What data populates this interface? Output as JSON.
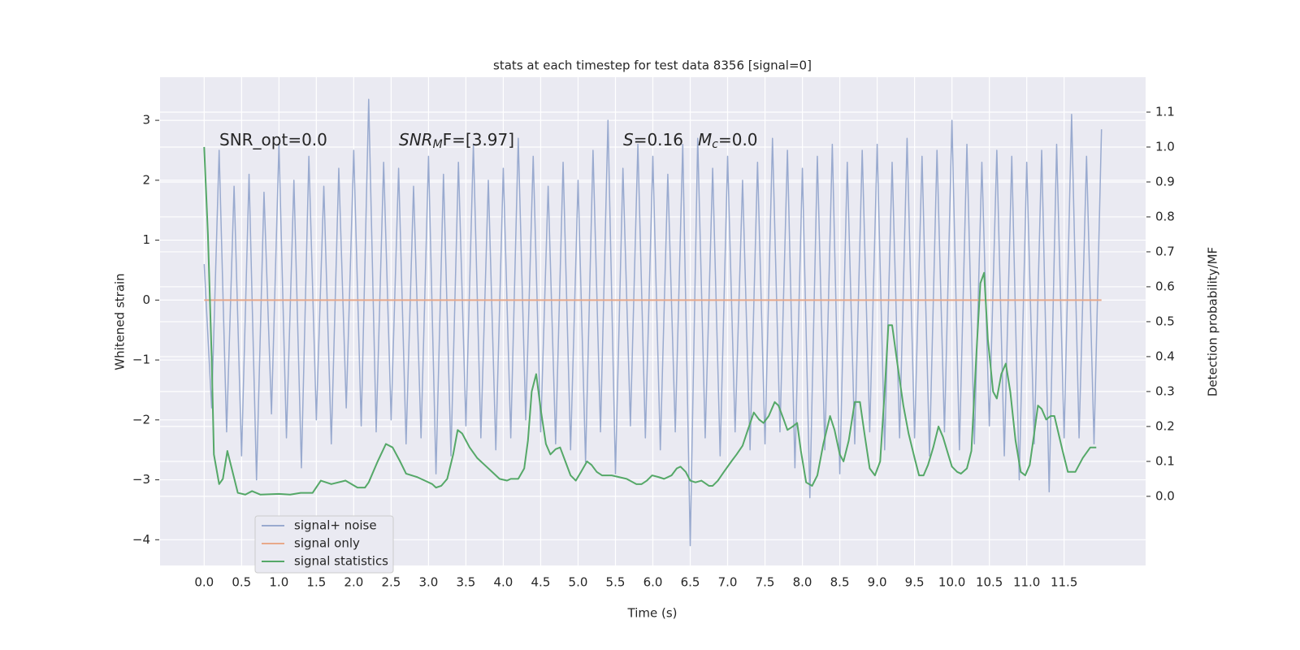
{
  "chart_data": {
    "type": "line",
    "title": "stats at each timestep for test data 8356 [signal=0]",
    "xlabel": "Time (s)",
    "ylabel": "Whitened strain",
    "y2label": "Detection probability/MF",
    "xlim": [
      -0.59,
      12.59
    ],
    "ylim": [
      -4.43,
      3.72
    ],
    "y2lim": [
      -0.198,
      1.2
    ],
    "xticks": [
      {
        "value": 0,
        "label": "0.0"
      },
      0.5,
      {
        "value": 1,
        "label": "1.0"
      },
      1.5,
      {
        "value": 2,
        "label": "2.0"
      },
      2.5,
      {
        "value": 3,
        "label": "3.0"
      },
      3.5,
      {
        "value": 4,
        "label": "4.0"
      },
      4.5,
      {
        "value": 5,
        "label": "5.0"
      },
      5.5,
      {
        "value": 6,
        "label": "6.0"
      },
      6.5,
      {
        "value": 7,
        "label": "7.0"
      },
      7.5,
      {
        "value": 8,
        "label": "8.0"
      },
      8.5,
      {
        "value": 9,
        "label": "9.0"
      },
      9.5,
      {
        "value": 10,
        "label": "10.0"
      },
      10.5,
      {
        "value": 11,
        "label": "11.0"
      },
      11.5
    ],
    "yticks": [
      {
        "value": -4,
        "label": "−4"
      },
      {
        "value": -3,
        "label": "−3"
      },
      {
        "value": -2,
        "label": "−2"
      },
      {
        "value": -1,
        "label": "−1"
      },
      0,
      1,
      2,
      3
    ],
    "y2ticks": [
      {
        "value": 0,
        "label": "0.0"
      },
      0.1,
      0.2,
      0.3,
      0.4,
      0.5,
      0.6,
      0.7,
      0.8,
      0.9,
      {
        "value": 1,
        "label": "1.0"
      },
      1.1
    ],
    "grid": true,
    "legend": "lower left",
    "annotations": [
      {
        "main": "SNR_opt=0.0"
      },
      {
        "main": "SNR",
        "sub": "M",
        "tail": "F=[3.97]"
      },
      {
        "main": "S",
        "tail": "=0.16"
      },
      {
        "main": "M",
        "sub": "c",
        "tail": "=0.0"
      }
    ],
    "series": [
      {
        "name": "signal+ noise",
        "color": "#99aacf",
        "x": [
          0,
          0.1,
          0.2,
          0.3,
          0.4,
          0.5,
          0.6,
          0.7,
          0.8,
          0.9,
          1,
          1.1,
          1.2,
          1.3,
          1.4,
          1.5,
          1.6,
          1.7,
          1.8,
          1.9,
          2,
          2.1,
          2.2,
          2.3,
          2.4,
          2.5,
          2.6,
          2.7,
          2.8,
          2.9,
          3,
          3.1,
          3.2,
          3.3,
          3.4,
          3.5,
          3.6,
          3.7,
          3.8,
          3.9,
          4,
          4.1,
          4.2,
          4.3,
          4.4,
          4.5,
          4.6,
          4.7,
          4.8,
          4.9,
          5,
          5.1,
          5.2,
          5.3,
          5.4,
          5.5,
          5.6,
          5.7,
          5.8,
          5.9,
          6,
          6.1,
          6.2,
          6.3,
          6.4,
          6.5,
          6.6,
          6.7,
          6.8,
          6.9,
          7,
          7.1,
          7.2,
          7.3,
          7.4,
          7.5,
          7.6,
          7.7,
          7.8,
          7.9,
          8,
          8.1,
          8.2,
          8.3,
          8.4,
          8.5,
          8.6,
          8.7,
          8.8,
          8.9,
          9,
          9.1,
          9.2,
          9.3,
          9.4,
          9.5,
          9.6,
          9.7,
          9.8,
          9.9,
          10,
          10.1,
          10.2,
          10.3,
          10.4,
          10.5,
          10.6,
          10.7,
          10.8,
          10.9,
          11,
          11.1,
          11.2,
          11.3,
          11.4,
          11.5,
          11.6,
          11.7,
          11.8,
          11.9,
          12
        ],
        "values": [
          0.6,
          -1.8,
          2.5,
          -2.2,
          1.9,
          -2.6,
          2.1,
          -3.0,
          1.8,
          -1.9,
          2.6,
          -2.3,
          2.0,
          -2.8,
          2.4,
          -2.0,
          1.9,
          -2.4,
          2.2,
          -1.8,
          2.5,
          -2.1,
          3.35,
          -2.2,
          2.3,
          -2.0,
          2.2,
          -2.4,
          1.9,
          -2.3,
          2.4,
          -2.9,
          2.1,
          -2.6,
          2.3,
          -2.1,
          2.6,
          -2.3,
          2.0,
          -2.5,
          2.2,
          -2.3,
          2.7,
          -2.0,
          2.4,
          -2.2,
          1.9,
          -2.4,
          2.3,
          -2.5,
          2.0,
          -2.7,
          2.5,
          -2.2,
          3.0,
          -2.9,
          2.2,
          -2.1,
          2.6,
          -2.3,
          2.4,
          -2.5,
          2.1,
          -2.2,
          2.6,
          -4.1,
          2.7,
          -2.3,
          2.2,
          -2.6,
          2.4,
          -2.2,
          2.0,
          -2.5,
          2.3,
          -2.4,
          2.7,
          -2.2,
          2.5,
          -2.8,
          2.2,
          -3.3,
          2.4,
          -2.5,
          2.6,
          -2.9,
          2.3,
          -2.4,
          2.5,
          -2.2,
          2.6,
          -2.5,
          2.3,
          -2.3,
          2.7,
          -2.3,
          2.4,
          -2.6,
          2.5,
          -2.2,
          3.0,
          -2.5,
          2.6,
          -2.4,
          2.3,
          -2.1,
          2.5,
          -2.6,
          2.4,
          -3.0,
          2.3,
          -2.4,
          2.5,
          -3.2,
          2.6,
          -2.3,
          3.1,
          -2.3,
          2.4,
          -2.4,
          2.85
        ]
      },
      {
        "name": "signal only",
        "color": "#e8a98a",
        "x": [
          0,
          12
        ],
        "values": [
          0,
          0
        ]
      },
      {
        "name": "signal statistics",
        "color": "#55a868",
        "axis": "y2",
        "x": [
          0,
          0.05,
          0.1,
          0.13,
          0.2,
          0.25,
          0.31,
          0.45,
          0.55,
          0.64,
          0.75,
          1.0,
          1.15,
          1.29,
          1.45,
          1.56,
          1.7,
          1.89,
          2.05,
          2.15,
          2.2,
          2.32,
          2.43,
          2.52,
          2.62,
          2.7,
          2.85,
          2.95,
          3.05,
          3.1,
          3.17,
          3.25,
          3.33,
          3.39,
          3.45,
          3.55,
          3.65,
          3.75,
          3.85,
          3.95,
          4.05,
          4.1,
          4.2,
          4.28,
          4.33,
          4.38,
          4.44,
          4.5,
          4.57,
          4.63,
          4.7,
          4.76,
          4.83,
          4.9,
          4.97,
          5.04,
          5.12,
          5.18,
          5.25,
          5.32,
          5.45,
          5.55,
          5.65,
          5.78,
          5.85,
          5.92,
          5.99,
          6.08,
          6.15,
          6.25,
          6.32,
          6.37,
          6.44,
          6.5,
          6.57,
          6.65,
          6.75,
          6.8,
          6.87,
          6.95,
          7.05,
          7.12,
          7.2,
          7.27,
          7.35,
          7.42,
          7.48,
          7.55,
          7.63,
          7.68,
          7.75,
          7.8,
          7.87,
          7.93,
          7.98,
          8.05,
          8.13,
          8.2,
          8.28,
          8.37,
          8.43,
          8.5,
          8.55,
          8.62,
          8.7,
          8.77,
          8.83,
          8.9,
          8.97,
          9.04,
          9.1,
          9.15,
          9.2,
          9.27,
          9.35,
          9.42,
          9.5,
          9.56,
          9.62,
          9.68,
          9.75,
          9.82,
          9.88,
          9.95,
          10.0,
          10.07,
          10.12,
          10.2,
          10.26,
          10.33,
          10.38,
          10.43,
          10.48,
          10.55,
          10.6,
          10.66,
          10.72,
          10.78,
          10.85,
          10.92,
          10.98,
          11.04,
          11.1,
          11.15,
          11.2,
          11.26,
          11.32,
          11.37,
          11.48,
          11.55,
          11.65,
          11.75,
          11.85,
          11.93
        ],
        "values": [
          1.0,
          0.75,
          0.4,
          0.12,
          0.035,
          0.05,
          0.13,
          0.01,
          0.005,
          0.015,
          0.005,
          0.007,
          0.005,
          0.01,
          0.01,
          0.045,
          0.035,
          0.045,
          0.025,
          0.025,
          0.04,
          0.1,
          0.15,
          0.14,
          0.1,
          0.065,
          0.055,
          0.045,
          0.035,
          0.025,
          0.03,
          0.05,
          0.12,
          0.19,
          0.18,
          0.14,
          0.11,
          0.09,
          0.07,
          0.05,
          0.045,
          0.05,
          0.05,
          0.08,
          0.16,
          0.3,
          0.35,
          0.25,
          0.15,
          0.12,
          0.135,
          0.14,
          0.1,
          0.06,
          0.045,
          0.07,
          0.1,
          0.09,
          0.07,
          0.06,
          0.06,
          0.055,
          0.05,
          0.035,
          0.035,
          0.045,
          0.06,
          0.055,
          0.05,
          0.06,
          0.08,
          0.085,
          0.07,
          0.045,
          0.04,
          0.045,
          0.03,
          0.03,
          0.045,
          0.07,
          0.1,
          0.12,
          0.145,
          0.19,
          0.24,
          0.22,
          0.21,
          0.23,
          0.27,
          0.26,
          0.22,
          0.19,
          0.2,
          0.21,
          0.13,
          0.04,
          0.03,
          0.06,
          0.15,
          0.23,
          0.19,
          0.12,
          0.1,
          0.16,
          0.27,
          0.27,
          0.18,
          0.08,
          0.06,
          0.1,
          0.3,
          0.49,
          0.49,
          0.38,
          0.26,
          0.18,
          0.11,
          0.06,
          0.06,
          0.09,
          0.14,
          0.2,
          0.17,
          0.12,
          0.085,
          0.07,
          0.065,
          0.08,
          0.13,
          0.42,
          0.61,
          0.64,
          0.45,
          0.3,
          0.28,
          0.35,
          0.38,
          0.3,
          0.16,
          0.07,
          0.06,
          0.09,
          0.18,
          0.26,
          0.25,
          0.22,
          0.23,
          0.23,
          0.13,
          0.07,
          0.07,
          0.11,
          0.14,
          0.14
        ]
      }
    ]
  }
}
